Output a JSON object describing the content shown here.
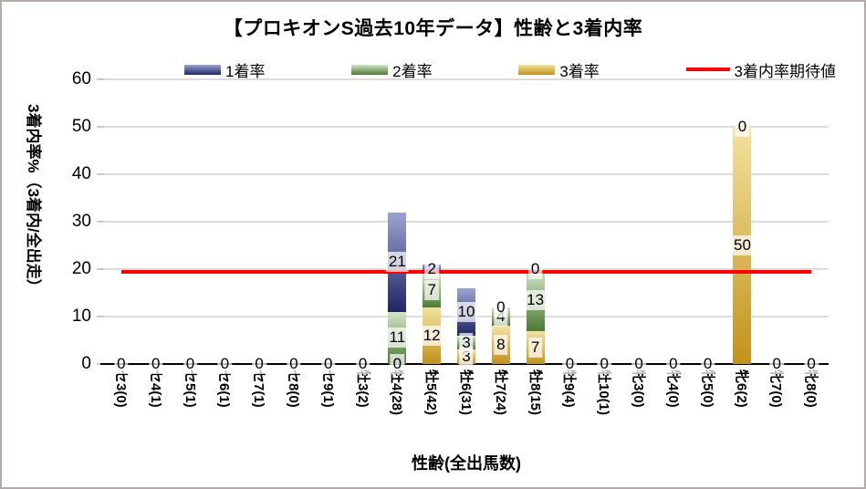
{
  "title": "【プロキオンS過去10年データ】性齢と3着内率",
  "legend": [
    {
      "label": "1着率",
      "type": "bar"
    },
    {
      "label": "2着率",
      "type": "bar"
    },
    {
      "label": "3着率",
      "type": "bar"
    },
    {
      "label": "3着内率期待値",
      "type": "line"
    }
  ],
  "colors": {
    "win1_top": "#9ba4d1",
    "win1_bottom": "#202566",
    "win2_top": "#d4e4c7",
    "win2_bottom": "#4b7b33",
    "win3_top": "#f3e2a0",
    "win3_bottom": "#c2921c",
    "expected_line": "#ff0000",
    "gridline": "#dcdcdc",
    "axis": "#000000"
  },
  "chart_data": {
    "type": "bar",
    "stacked": true,
    "title": "【プロキオンS過去10年データ】性齢と3着内率",
    "xlabel": "性齢(全出馬数)",
    "ylabel": "3着内率%（3着内/全出走）",
    "ylim": [
      0,
      60
    ],
    "yticks": [
      0,
      10,
      20,
      30,
      40,
      50,
      60
    ],
    "grid": true,
    "legend_position": "top",
    "categories": [
      "セ3(0)",
      "セ4(1)",
      "セ5(1)",
      "セ6(1)",
      "セ7(1)",
      "セ8(0)",
      "セ9(1)",
      "牡3(2)",
      "牡4(28)",
      "牡5(42)",
      "牡6(31)",
      "牡7(24)",
      "牡8(15)",
      "牡9(4)",
      "牡10(1)",
      "牝3(0)",
      "牝4(0)",
      "牝5(0)",
      "牝6(2)",
      "牝7(0)",
      "牝8(0)"
    ],
    "series": [
      {
        "name": "1着率",
        "values": [
          0,
          0,
          0,
          0,
          0,
          0,
          0,
          0,
          21,
          2,
          10,
          0,
          0,
          0,
          0,
          0,
          0,
          0,
          0,
          0,
          0
        ]
      },
      {
        "name": "2着率",
        "values": [
          0,
          0,
          0,
          0,
          0,
          0,
          0,
          0,
          11,
          7,
          3,
          4,
          13,
          0,
          0,
          0,
          0,
          0,
          0,
          0,
          0
        ]
      },
      {
        "name": "3着率",
        "values": [
          0,
          0,
          0,
          0,
          0,
          0,
          0,
          0,
          0,
          12,
          3,
          8,
          7,
          0,
          0,
          0,
          0,
          0,
          50,
          0,
          0
        ]
      }
    ],
    "stack_order_bottom_to_top": [
      "3着率",
      "2着率",
      "1着率"
    ],
    "expected_line": {
      "name": "3着内率期待値",
      "value": 19.4
    },
    "data_labels": "shown for every segment, zeros included"
  }
}
